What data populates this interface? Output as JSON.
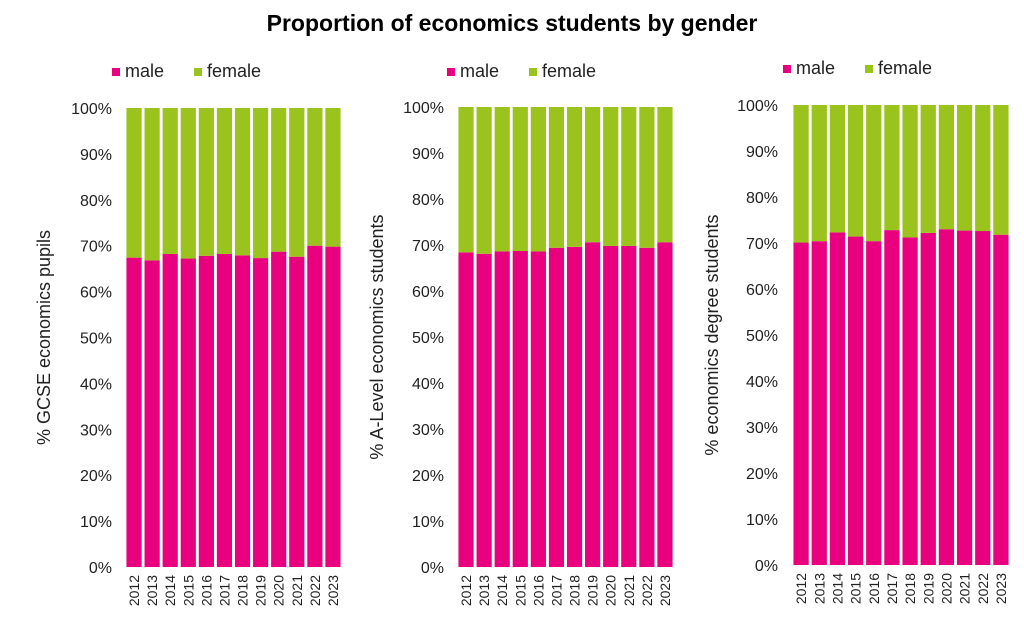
{
  "title": "Proportion of economics students by gender",
  "colors": {
    "male": "#e8007f",
    "female": "#9bc31d"
  },
  "chart_data": [
    {
      "type": "bar",
      "stacked": true,
      "categories": [
        "2012",
        "2013",
        "2014",
        "2015",
        "2016",
        "2017",
        "2018",
        "2019",
        "2020",
        "2021",
        "2022",
        "2023"
      ],
      "series": [
        {
          "name": "male",
          "values": [
            67.4,
            66.8,
            68.2,
            67.2,
            67.8,
            68.2,
            67.9,
            67.3,
            68.7,
            67.6,
            70.0,
            69.8
          ]
        },
        {
          "name": "female",
          "values": [
            32.6,
            33.2,
            31.8,
            32.8,
            32.2,
            31.8,
            32.1,
            32.7,
            31.3,
            32.4,
            30.0,
            30.2
          ]
        }
      ],
      "ylabel": "%  GCSE economics pupils",
      "ylim": [
        0,
        100
      ],
      "yticks": [
        "0%",
        "10%",
        "20%",
        "30%",
        "40%",
        "50%",
        "60%",
        "70%",
        "80%",
        "90%",
        "100%"
      ],
      "legend": "top"
    },
    {
      "type": "bar",
      "stacked": true,
      "categories": [
        "2012",
        "2013",
        "2014",
        "2015",
        "2016",
        "2017",
        "2018",
        "2019",
        "2020",
        "2021",
        "2022",
        "2023"
      ],
      "series": [
        {
          "name": "male",
          "values": [
            68.4,
            68.1,
            68.6,
            68.7,
            68.6,
            69.4,
            69.6,
            70.6,
            69.8,
            69.8,
            69.4,
            70.6
          ]
        },
        {
          "name": "female",
          "values": [
            31.6,
            31.9,
            31.4,
            31.3,
            31.4,
            30.6,
            30.4,
            29.4,
            30.2,
            30.2,
            30.6,
            29.4
          ]
        }
      ],
      "ylabel": "%  A-Level economics students",
      "ylim": [
        0,
        100
      ],
      "yticks": [
        "0%",
        "10%",
        "20%",
        "30%",
        "40%",
        "50%",
        "60%",
        "70%",
        "80%",
        "90%",
        "100%"
      ],
      "legend": "top"
    },
    {
      "type": "bar",
      "stacked": true,
      "categories": [
        "2012",
        "2013",
        "2014",
        "2015",
        "2016",
        "2017",
        "2018",
        "2019",
        "2020",
        "2021",
        "2022",
        "2023"
      ],
      "series": [
        {
          "name": "male",
          "values": [
            70.1,
            70.4,
            72.3,
            71.4,
            70.4,
            72.8,
            71.2,
            72.2,
            73.0,
            72.7,
            72.6,
            71.8
          ]
        },
        {
          "name": "female",
          "values": [
            29.9,
            29.6,
            27.7,
            28.6,
            29.6,
            27.2,
            28.8,
            27.8,
            27.0,
            27.3,
            27.4,
            28.2
          ]
        }
      ],
      "ylabel": "% economics degree students",
      "ylim": [
        0,
        100
      ],
      "yticks": [
        "0%",
        "10%",
        "20%",
        "30%",
        "40%",
        "50%",
        "60%",
        "70%",
        "80%",
        "90%",
        "100%"
      ],
      "legend": "top"
    }
  ]
}
